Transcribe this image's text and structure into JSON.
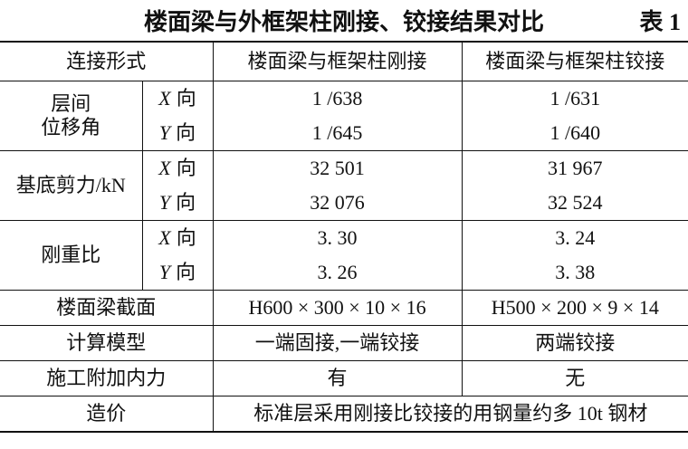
{
  "header": {
    "title": "楼面梁与外框架柱刚接、铰接结果对比",
    "label": "表 1"
  },
  "table": {
    "columns": [
      "连接形式",
      "楼面梁与框架柱刚接",
      "楼面梁与框架柱铰接"
    ],
    "groups": [
      {
        "label": [
          "层间",
          "位移角"
        ],
        "rows": [
          {
            "axis": "X",
            "unit": "向",
            "rigid": "1 /638",
            "hinged": "1 /631"
          },
          {
            "axis": "Y",
            "unit": "向",
            "rigid": "1 /645",
            "hinged": "1 /640"
          }
        ]
      },
      {
        "label": [
          "基底剪力/kN"
        ],
        "rows": [
          {
            "axis": "X",
            "unit": "向",
            "rigid": "32 501",
            "hinged": "31 967"
          },
          {
            "axis": "Y",
            "unit": "向",
            "rigid": "32 076",
            "hinged": "32 524"
          }
        ]
      },
      {
        "label": [
          "刚重比"
        ],
        "rows": [
          {
            "axis": "X",
            "unit": "向",
            "rigid": "3. 30",
            "hinged": "3. 24"
          },
          {
            "axis": "Y",
            "unit": "向",
            "rigid": "3. 26",
            "hinged": "3. 38"
          }
        ]
      }
    ],
    "rows": [
      {
        "label": "楼面梁截面",
        "rigid": "H600 × 300 × 10 × 16",
        "hinged": "H500 × 200 × 9 × 14"
      },
      {
        "label": "计算模型",
        "rigid": "一端固接,一端铰接",
        "hinged": "两端铰接"
      },
      {
        "label": "施工附加内力",
        "rigid": "有",
        "hinged": "无"
      }
    ],
    "cost": {
      "label": "造价",
      "text": "标准层采用刚接比铰接的用钢量约多 10t 钢材"
    }
  }
}
